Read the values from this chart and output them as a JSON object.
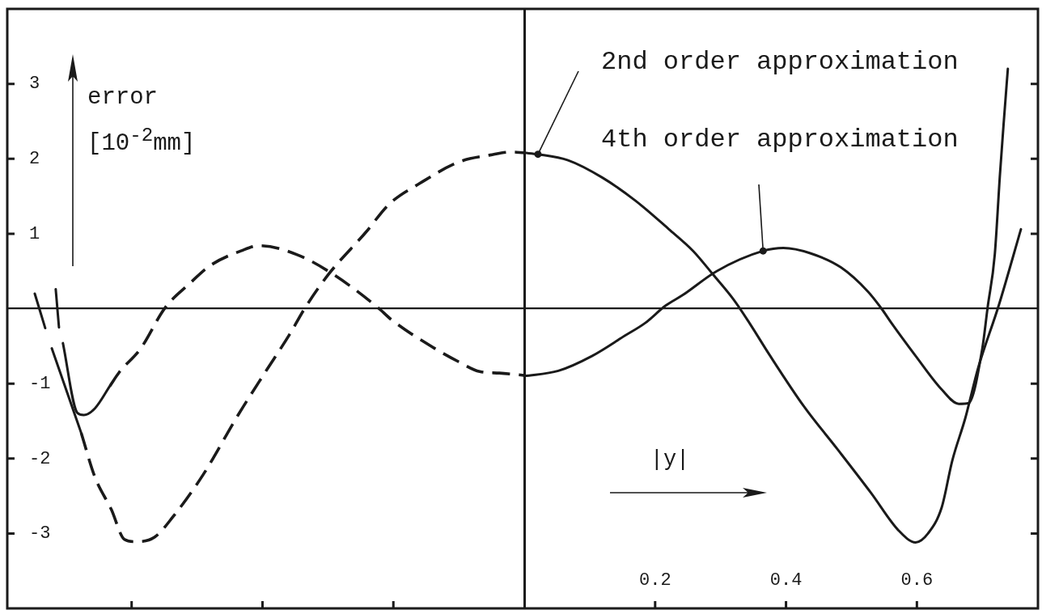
{
  "chart_data": {
    "type": "line",
    "xlabel": "|y|",
    "ylabel": "error [10$^{-2}$mm]",
    "xlim": [
      -0.79,
      0.785
    ],
    "ylim": [
      -4,
      4
    ],
    "xticks": [
      {
        "value": -0.6,
        "label": null
      },
      {
        "value": -0.4,
        "label": null
      },
      {
        "value": -0.2,
        "label": null
      },
      0.2,
      0.4,
      0.6
    ],
    "yticks": [
      -3,
      -2,
      -1,
      1,
      2,
      3
    ],
    "marker": "none",
    "series": [
      {
        "name": "2nd order approximation",
        "color": "#1a1a1a",
        "line_style": "solid",
        "x": [
          0,
          0.021,
          0.067,
          0.119,
          0.17,
          0.221,
          0.258,
          0.289,
          0.32,
          0.344,
          0.375,
          0.427,
          0.479,
          0.53,
          0.572,
          0.598,
          0.617,
          0.638,
          0.654,
          0.674,
          0.694,
          0.725,
          0.759
        ],
        "values": [
          2.08,
          2.06,
          1.98,
          1.75,
          1.44,
          1.06,
          0.77,
          0.45,
          0.12,
          -0.19,
          -0.62,
          -1.3,
          -1.88,
          -2.46,
          -2.96,
          -3.12,
          -3.0,
          -2.65,
          -2.03,
          -1.46,
          -0.78,
          0.04,
          1.06
        ]
      },
      {
        "name": "4th order approximation",
        "color": "#1a1a1a",
        "line_style": "solid",
        "x": [
          0,
          0.052,
          0.104,
          0.154,
          0.185,
          0.216,
          0.242,
          0.294,
          0.365,
          0.396,
          0.437,
          0.484,
          0.525,
          0.546,
          0.561,
          0.598,
          0.638,
          0.664,
          0.679,
          0.7,
          0.708,
          0.719,
          0.727,
          0.733,
          0.739
        ],
        "values": [
          -0.9,
          -0.83,
          -0.63,
          -0.36,
          -0.19,
          0.04,
          0.18,
          0.5,
          0.77,
          0.81,
          0.74,
          0.55,
          0.23,
          0.0,
          -0.19,
          -0.63,
          -1.08,
          -1.27,
          -1.26,
          -0.53,
          0.01,
          0.72,
          1.8,
          2.52,
          3.2
        ]
      },
      {
        "color": "#1a1a1a",
        "line_style": "dashed",
        "x": [
          -0.677,
          -0.656,
          -0.631,
          -0.611,
          -0.594,
          -0.565,
          -0.537,
          -0.491,
          -0.438,
          -0.396,
          -0.359,
          -0.335,
          -0.298,
          -0.242,
          -0.207,
          -0.16,
          -0.099,
          -0.052,
          -0.021,
          0
        ],
        "values": [
          -1.66,
          -2.25,
          -2.68,
          -3.08,
          -3.11,
          -3.05,
          -2.78,
          -2.22,
          -1.43,
          -0.85,
          -0.35,
          0.01,
          0.47,
          1.02,
          1.39,
          1.67,
          1.96,
          2.05,
          2.09,
          2.08
        ]
      },
      {
        "color": "#1a1a1a",
        "line_style": "dashed",
        "x": [
          -0.633,
          -0.619,
          -0.586,
          -0.549,
          -0.512,
          -0.479,
          -0.433,
          -0.405,
          -0.347,
          -0.294,
          -0.223,
          -0.204,
          -0.137,
          -0.1,
          -0.068,
          -0.038,
          0
        ],
        "values": [
          -1.03,
          -0.85,
          -0.53,
          0.01,
          0.33,
          0.58,
          0.77,
          0.84,
          0.72,
          0.47,
          0.01,
          -0.14,
          -0.53,
          -0.71,
          -0.84,
          -0.86,
          -0.89
        ]
      },
      {
        "color": "#1a1a1a",
        "line_style": "solid",
        "x": [
          -0.748,
          -0.732,
          -0.727,
          -0.722,
          -0.677
        ],
        "values": [
          0.2,
          -0.26,
          null,
          -0.53,
          -1.66
        ]
      },
      {
        "color": "#1a1a1a",
        "line_style": "solid",
        "x": [
          -0.716,
          -0.711,
          -0.708,
          -0.705,
          -0.683,
          -0.673,
          -0.656,
          -0.633
        ],
        "values": [
          0.26,
          -0.25,
          null,
          -0.46,
          -1.39,
          -1.42,
          -1.33,
          -1.03
        ]
      }
    ]
  }
}
